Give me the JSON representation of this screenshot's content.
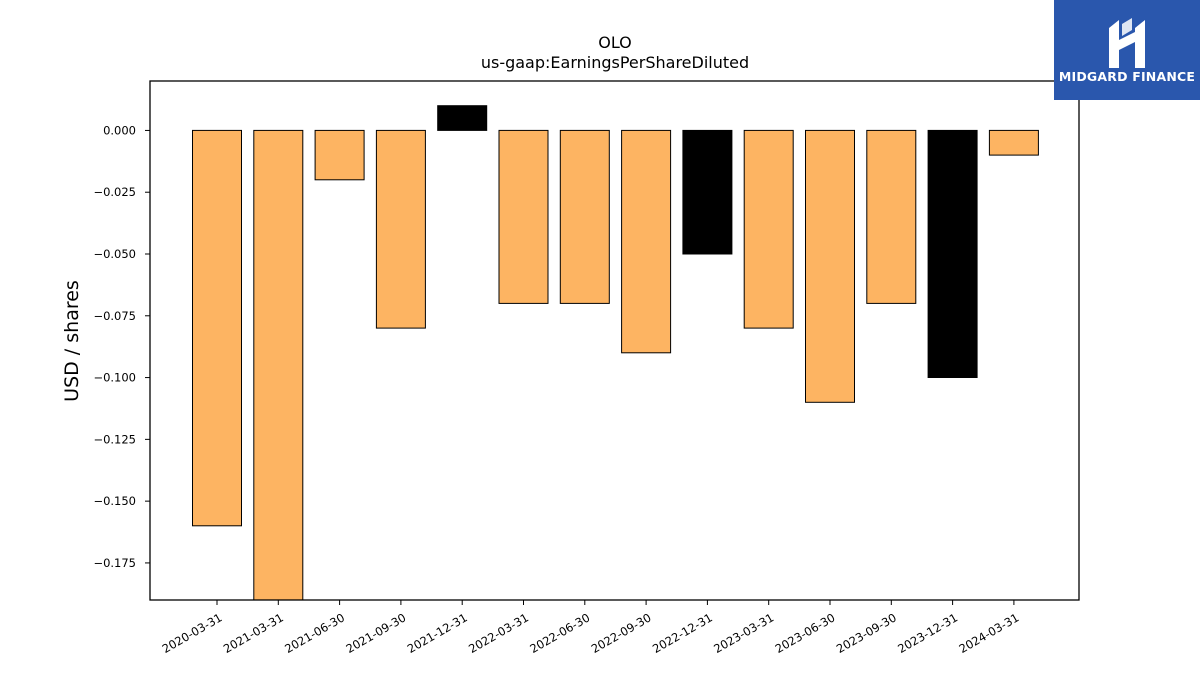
{
  "logo": {
    "text": "MIDGARD FINANCE",
    "icon": "midgard-monogram-icon",
    "background": "#2a57ad"
  },
  "chart_data": {
    "type": "bar",
    "title": "OLO",
    "subtitle": "us-gaap:EarningsPerShareDiluted",
    "xlabel": "",
    "ylabel": "USD / shares",
    "ylim": [
      -0.19,
      0.02
    ],
    "yticks": [
      "0.000",
      "−0.025",
      "−0.050",
      "−0.075",
      "−0.100",
      "−0.125",
      "−0.150",
      "−0.175"
    ],
    "ytick_values": [
      0,
      -0.025,
      -0.05,
      -0.075,
      -0.1,
      -0.125,
      -0.15,
      -0.175
    ],
    "categories": [
      "2020-03-31",
      "2021-03-31",
      "2021-06-30",
      "2021-09-30",
      "2021-12-31",
      "2022-03-31",
      "2022-06-30",
      "2022-09-30",
      "2022-12-31",
      "2023-03-31",
      "2023-06-30",
      "2023-09-30",
      "2023-12-31",
      "2024-03-31"
    ],
    "values": [
      -0.16,
      -0.19,
      -0.02,
      -0.08,
      0.01,
      -0.07,
      -0.07,
      -0.09,
      -0.05,
      -0.08,
      -0.11,
      -0.07,
      -0.1,
      -0.01
    ],
    "highlight": [
      false,
      false,
      false,
      false,
      true,
      false,
      false,
      false,
      true,
      false,
      false,
      false,
      true,
      false
    ],
    "colors": {
      "bar": "#fdb462",
      "highlight": "#000000",
      "edge": "#000000"
    },
    "grid": false,
    "legend": "none"
  }
}
